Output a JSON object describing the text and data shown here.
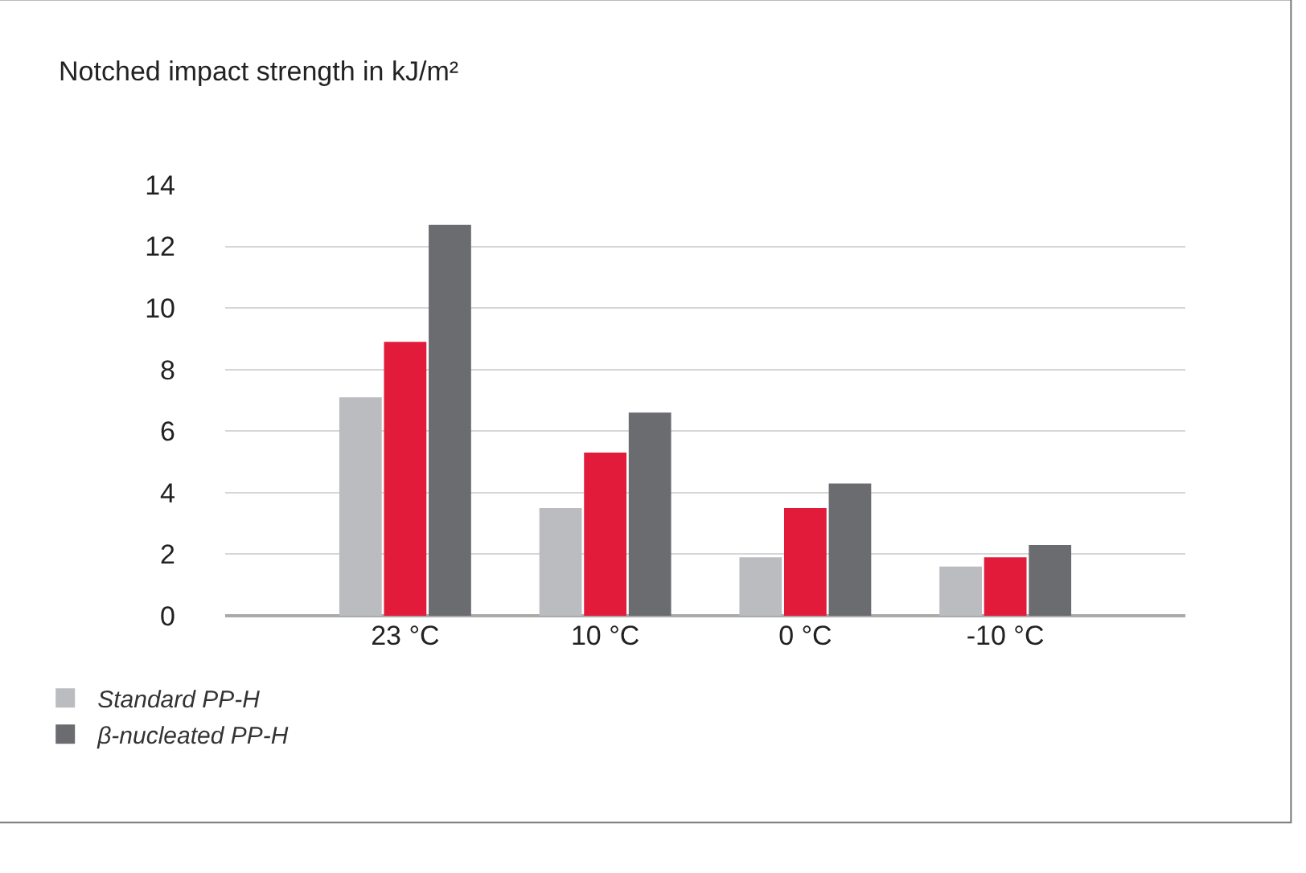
{
  "chart_data": {
    "type": "bar",
    "title": "Notched impact strength in kJ/m²",
    "categories": [
      "23 °C",
      "10 °C",
      "0 °C",
      "-10 °C"
    ],
    "series": [
      {
        "name": "Standard PP-H",
        "color": "#bbbcc0",
        "values": [
          7.1,
          3.5,
          1.9,
          1.6
        ]
      },
      {
        "color": "#e31b3b",
        "values": [
          8.9,
          5.3,
          3.5,
          1.9
        ]
      },
      {
        "name": "β-nucleated PP-H",
        "color": "#6b6c70",
        "values": [
          12.7,
          6.6,
          4.3,
          2.3
        ]
      }
    ],
    "ylim": [
      0,
      14
    ],
    "yticks": [
      0,
      2,
      4,
      6,
      8,
      10,
      12,
      14
    ],
    "grid": "y",
    "legend": "bottom left"
  }
}
